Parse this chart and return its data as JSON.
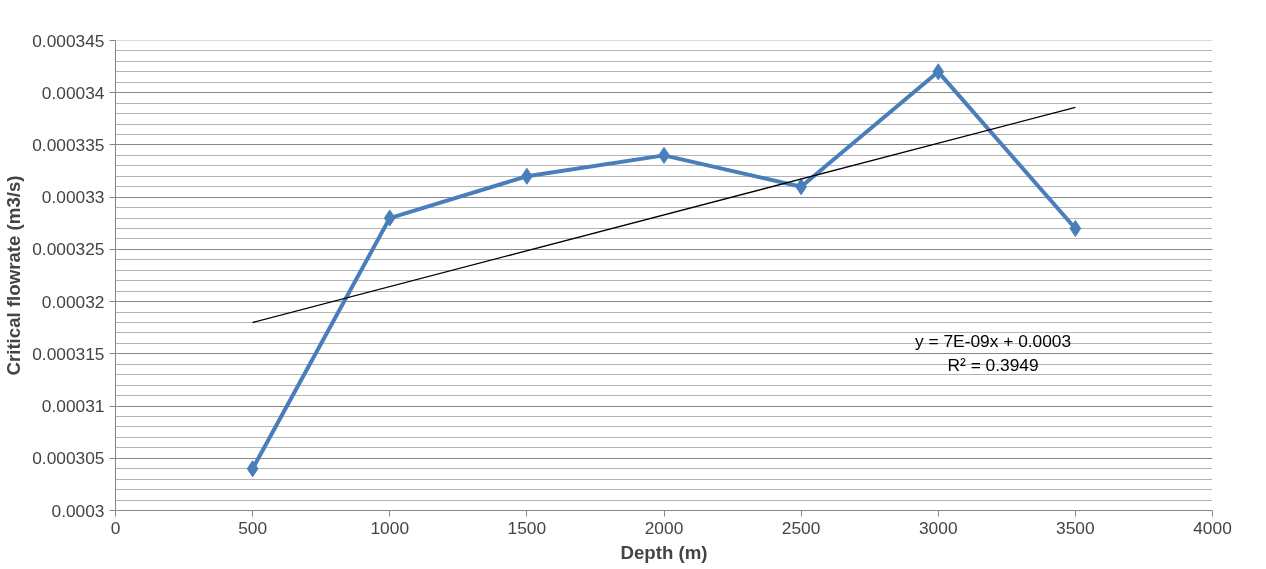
{
  "chart_data": {
    "type": "line",
    "xlabel": "Depth (m)",
    "ylabel": "Critical flowrate (m3/s)",
    "x": [
      500,
      1000,
      1500,
      2000,
      2500,
      3000,
      3500
    ],
    "series": [
      {
        "color": "#4a7ebb",
        "marker": "diamond",
        "values": [
          0.000304,
          0.000328,
          0.000332,
          0.000334,
          0.000331,
          0.000342,
          0.000327
        ]
      },
      {
        "color": "#000000",
        "marker": "none",
        "x": [
          500,
          3500
        ],
        "values": [
          0.000318,
          0.0003386
        ]
      }
    ],
    "xlim": [
      0,
      4000
    ],
    "xticks": [
      0,
      500,
      1000,
      1500,
      2000,
      2500,
      3000,
      3500,
      4000
    ],
    "ylim": [
      0.0003,
      0.000345
    ],
    "yticks": [
      0.0003,
      0.000305,
      0.00031,
      0.000315,
      0.00032,
      0.000325,
      0.00033,
      0.000335,
      0.00034,
      0.000345
    ],
    "grid": "y",
    "annotations": [
      "y = 7E-09x + 0.0003",
      "R² = 0.3949"
    ]
  }
}
